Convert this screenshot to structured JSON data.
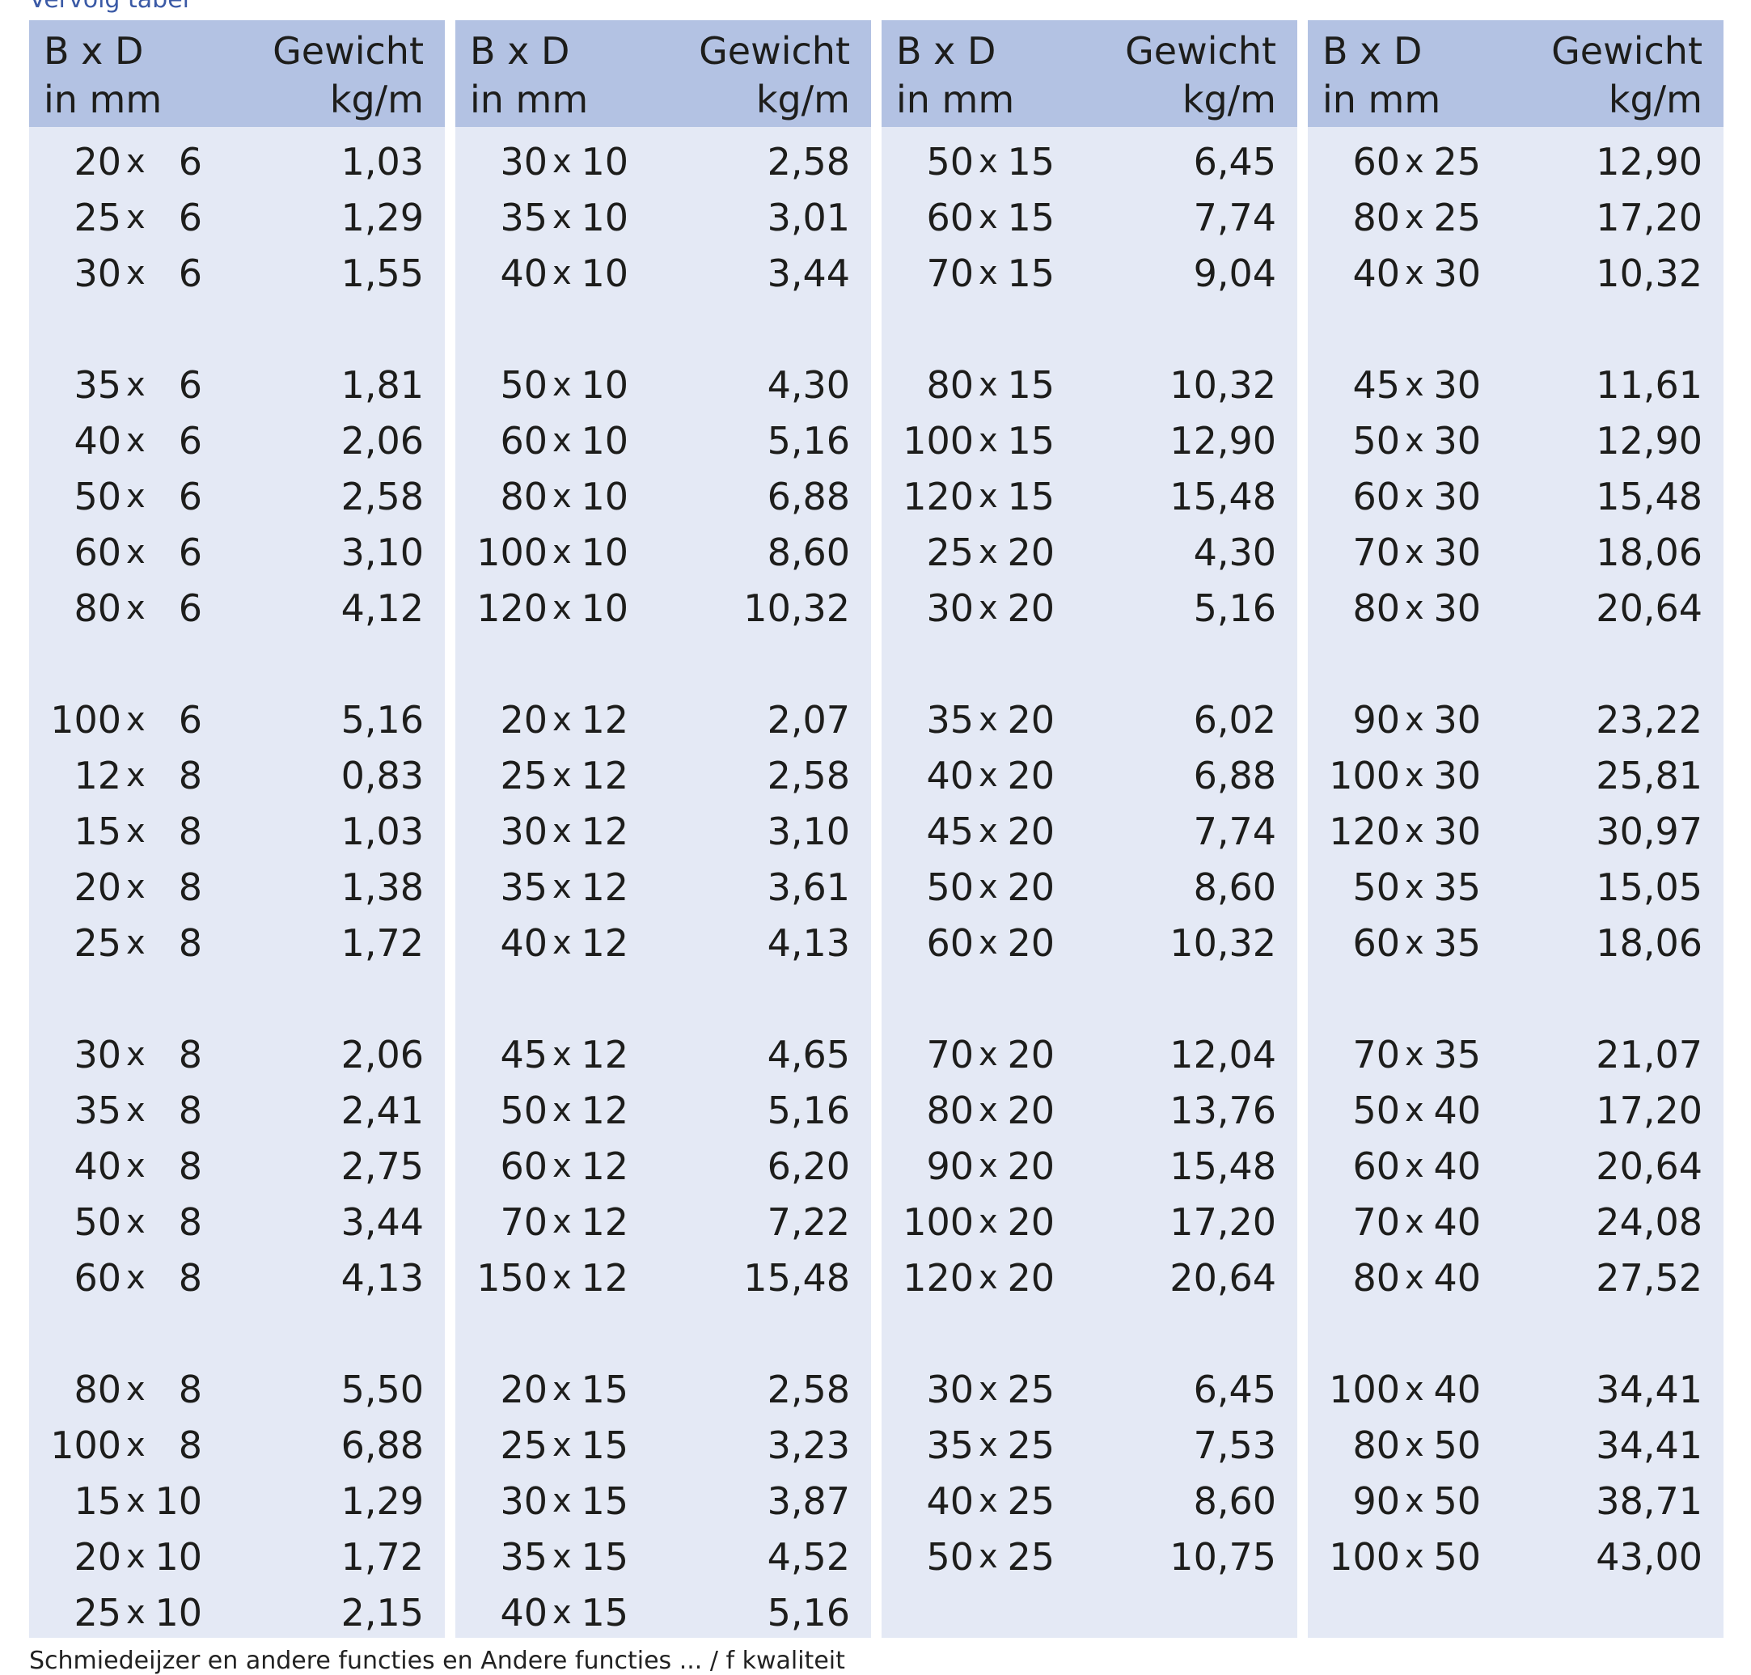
{
  "caption": "Vervolg tabel",
  "footnote": "Schmiedeijzer en andere functies en Andere functies ... / f kwaliteit",
  "header": {
    "dim_line1": "B x D",
    "dim_line2": "in mm",
    "weight_line1": "Gewicht",
    "weight_line2": "kg/m"
  },
  "columns": [
    {
      "groups": [
        [
          [
            "20",
            "6",
            "1,03"
          ],
          [
            "25",
            "6",
            "1,29"
          ],
          [
            "30",
            "6",
            "1,55"
          ]
        ],
        [
          [
            "35",
            "6",
            "1,81"
          ],
          [
            "40",
            "6",
            "2,06"
          ],
          [
            "50",
            "6",
            "2,58"
          ],
          [
            "60",
            "6",
            "3,10"
          ],
          [
            "80",
            "6",
            "4,12"
          ]
        ],
        [
          [
            "100",
            "6",
            "5,16"
          ],
          [
            "12",
            "8",
            "0,83"
          ],
          [
            "15",
            "8",
            "1,03"
          ],
          [
            "20",
            "8",
            "1,38"
          ],
          [
            "25",
            "8",
            "1,72"
          ]
        ],
        [
          [
            "30",
            "8",
            "2,06"
          ],
          [
            "35",
            "8",
            "2,41"
          ],
          [
            "40",
            "8",
            "2,75"
          ],
          [
            "50",
            "8",
            "3,44"
          ],
          [
            "60",
            "8",
            "4,13"
          ]
        ],
        [
          [
            "80",
            "8",
            "5,50"
          ],
          [
            "100",
            "8",
            "6,88"
          ],
          [
            "15",
            "10",
            "1,29"
          ],
          [
            "20",
            "10",
            "1,72"
          ],
          [
            "25",
            "10",
            "2,15"
          ]
        ]
      ]
    },
    {
      "groups": [
        [
          [
            "30",
            "10",
            "2,58"
          ],
          [
            "35",
            "10",
            "3,01"
          ],
          [
            "40",
            "10",
            "3,44"
          ]
        ],
        [
          [
            "50",
            "10",
            "4,30"
          ],
          [
            "60",
            "10",
            "5,16"
          ],
          [
            "80",
            "10",
            "6,88"
          ],
          [
            "100",
            "10",
            "8,60"
          ],
          [
            "120",
            "10",
            "10,32"
          ]
        ],
        [
          [
            "20",
            "12",
            "2,07"
          ],
          [
            "25",
            "12",
            "2,58"
          ],
          [
            "30",
            "12",
            "3,10"
          ],
          [
            "35",
            "12",
            "3,61"
          ],
          [
            "40",
            "12",
            "4,13"
          ]
        ],
        [
          [
            "45",
            "12",
            "4,65"
          ],
          [
            "50",
            "12",
            "5,16"
          ],
          [
            "60",
            "12",
            "6,20"
          ],
          [
            "70",
            "12",
            "7,22"
          ],
          [
            "150",
            "12",
            "15,48"
          ]
        ],
        [
          [
            "20",
            "15",
            "2,58"
          ],
          [
            "25",
            "15",
            "3,23"
          ],
          [
            "30",
            "15",
            "3,87"
          ],
          [
            "35",
            "15",
            "4,52"
          ],
          [
            "40",
            "15",
            "5,16"
          ]
        ]
      ]
    },
    {
      "groups": [
        [
          [
            "50",
            "15",
            "6,45"
          ],
          [
            "60",
            "15",
            "7,74"
          ],
          [
            "70",
            "15",
            "9,04"
          ]
        ],
        [
          [
            "80",
            "15",
            "10,32"
          ],
          [
            "100",
            "15",
            "12,90"
          ],
          [
            "120",
            "15",
            "15,48"
          ],
          [
            "25",
            "20",
            "4,30"
          ],
          [
            "30",
            "20",
            "5,16"
          ]
        ],
        [
          [
            "35",
            "20",
            "6,02"
          ],
          [
            "40",
            "20",
            "6,88"
          ],
          [
            "45",
            "20",
            "7,74"
          ],
          [
            "50",
            "20",
            "8,60"
          ],
          [
            "60",
            "20",
            "10,32"
          ]
        ],
        [
          [
            "70",
            "20",
            "12,04"
          ],
          [
            "80",
            "20",
            "13,76"
          ],
          [
            "90",
            "20",
            "15,48"
          ],
          [
            "100",
            "20",
            "17,20"
          ],
          [
            "120",
            "20",
            "20,64"
          ]
        ],
        [
          [
            "30",
            "25",
            "6,45"
          ],
          [
            "35",
            "25",
            "7,53"
          ],
          [
            "40",
            "25",
            "8,60"
          ],
          [
            "50",
            "25",
            "10,75"
          ]
        ]
      ]
    },
    {
      "groups": [
        [
          [
            "60",
            "25",
            "12,90"
          ],
          [
            "80",
            "25",
            "17,20"
          ],
          [
            "40",
            "30",
            "10,32"
          ]
        ],
        [
          [
            "45",
            "30",
            "11,61"
          ],
          [
            "50",
            "30",
            "12,90"
          ],
          [
            "60",
            "30",
            "15,48"
          ],
          [
            "70",
            "30",
            "18,06"
          ],
          [
            "80",
            "30",
            "20,64"
          ]
        ],
        [
          [
            "90",
            "30",
            "23,22"
          ],
          [
            "100",
            "30",
            "25,81"
          ],
          [
            "120",
            "30",
            "30,97"
          ],
          [
            "50",
            "35",
            "15,05"
          ],
          [
            "60",
            "35",
            "18,06"
          ]
        ],
        [
          [
            "70",
            "35",
            "21,07"
          ],
          [
            "50",
            "40",
            "17,20"
          ],
          [
            "60",
            "40",
            "20,64"
          ],
          [
            "70",
            "40",
            "24,08"
          ],
          [
            "80",
            "40",
            "27,52"
          ]
        ],
        [
          [
            "100",
            "40",
            "34,41"
          ],
          [
            "80",
            "50",
            "34,41"
          ],
          [
            "90",
            "50",
            "38,71"
          ],
          [
            "100",
            "50",
            "43,00"
          ]
        ]
      ]
    }
  ]
}
